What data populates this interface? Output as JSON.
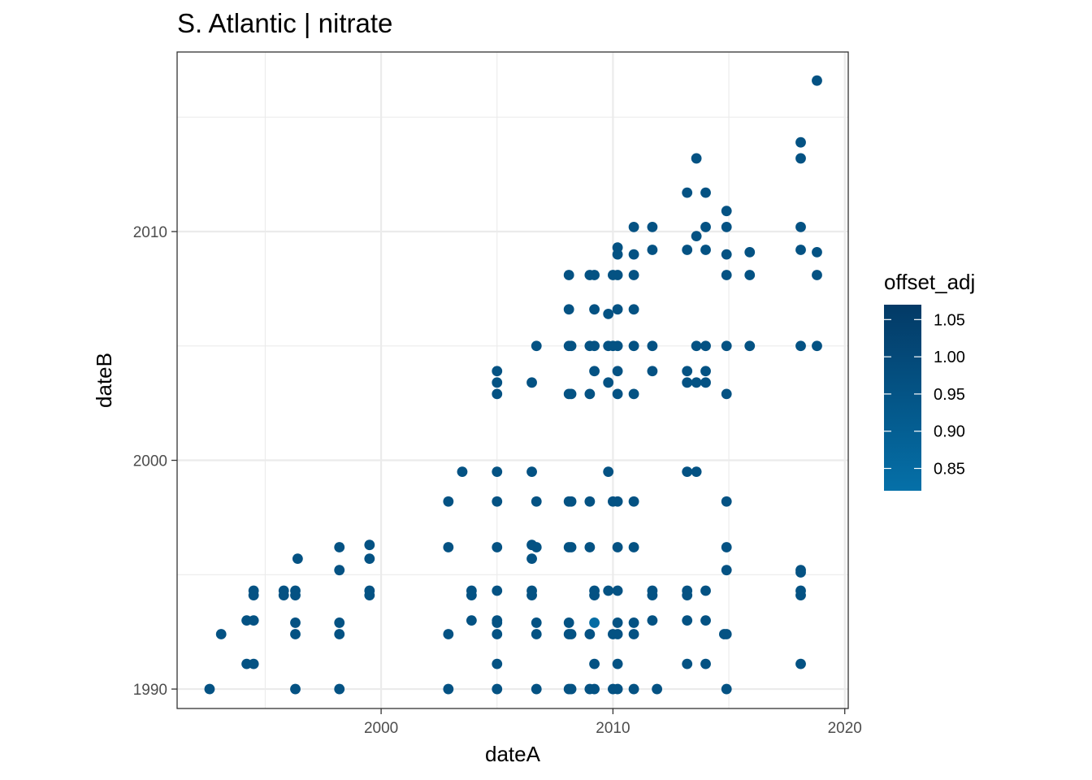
{
  "chart_data": {
    "type": "scatter",
    "title": "S. Atlantic | nitrate",
    "xlabel": "dateA",
    "ylabel": "dateB",
    "xlim": [
      1991.2,
      2020.15
    ],
    "ylim": [
      1989.15,
      2017.85
    ],
    "x_ticks": [
      2000,
      2010,
      2020
    ],
    "x_tick_labels": [
      "2000",
      "2010",
      "2020"
    ],
    "y_ticks": [
      1990,
      2000,
      2010
    ],
    "y_tick_labels": [
      "1990",
      "2000",
      "2010"
    ],
    "x_minor": [
      1995,
      2005,
      2015
    ],
    "y_minor": [
      1995,
      2005,
      2015
    ],
    "grid": true,
    "legend": {
      "title": "offset_adj",
      "placement": "right",
      "min": 0.82,
      "max": 1.07,
      "ticks": [
        1.05,
        1.0,
        0.95,
        0.9,
        0.85
      ],
      "tick_labels": [
        "1.05",
        "1.00",
        "0.95",
        "0.90",
        "0.85"
      ],
      "color_low": "#0570a8",
      "color_high": "#033a66"
    },
    "point_color_default": "#064a7d",
    "points": [
      {
        "x": 1992.6,
        "y": 1990.0,
        "v": 0.96
      },
      {
        "x": 1993.1,
        "y": 1992.4,
        "v": 0.96
      },
      {
        "x": 1994.2,
        "y": 1991.1,
        "v": 0.96
      },
      {
        "x": 1994.2,
        "y": 1993.0,
        "v": 0.96
      },
      {
        "x": 1994.5,
        "y": 1991.1,
        "v": 0.96
      },
      {
        "x": 1994.5,
        "y": 1993.0,
        "v": 0.96
      },
      {
        "x": 1994.5,
        "y": 1994.1,
        "v": 0.96
      },
      {
        "x": 1994.5,
        "y": 1994.3,
        "v": 0.96
      },
      {
        "x": 1995.8,
        "y": 1994.1,
        "v": 0.96
      },
      {
        "x": 1995.8,
        "y": 1994.3,
        "v": 0.96
      },
      {
        "x": 1996.3,
        "y": 1990.0,
        "v": 0.96
      },
      {
        "x": 1996.3,
        "y": 1992.4,
        "v": 0.96
      },
      {
        "x": 1996.3,
        "y": 1992.9,
        "v": 0.96
      },
      {
        "x": 1996.3,
        "y": 1994.1,
        "v": 0.96
      },
      {
        "x": 1996.3,
        "y": 1994.3,
        "v": 0.96
      },
      {
        "x": 1996.4,
        "y": 1995.7,
        "v": 0.96
      },
      {
        "x": 1998.2,
        "y": 1990.0,
        "v": 0.96
      },
      {
        "x": 1998.2,
        "y": 1992.4,
        "v": 0.96
      },
      {
        "x": 1998.2,
        "y": 1992.9,
        "v": 0.96
      },
      {
        "x": 1998.2,
        "y": 1995.2,
        "v": 0.96
      },
      {
        "x": 1998.2,
        "y": 1996.2,
        "v": 0.96
      },
      {
        "x": 1999.5,
        "y": 1994.1,
        "v": 0.96
      },
      {
        "x": 1999.5,
        "y": 1994.3,
        "v": 0.96
      },
      {
        "x": 1999.5,
        "y": 1995.7,
        "v": 0.96
      },
      {
        "x": 1999.5,
        "y": 1996.3,
        "v": 0.96
      },
      {
        "x": 2002.9,
        "y": 1990.0,
        "v": 0.96
      },
      {
        "x": 2002.9,
        "y": 1992.4,
        "v": 0.96
      },
      {
        "x": 2002.9,
        "y": 1996.2,
        "v": 0.96
      },
      {
        "x": 2002.9,
        "y": 1998.2,
        "v": 0.96
      },
      {
        "x": 2003.5,
        "y": 1999.5,
        "v": 0.96
      },
      {
        "x": 2003.9,
        "y": 1993.0,
        "v": 0.96
      },
      {
        "x": 2003.9,
        "y": 1994.1,
        "v": 0.96
      },
      {
        "x": 2003.9,
        "y": 1994.3,
        "v": 0.96
      },
      {
        "x": 2005.0,
        "y": 1990.0,
        "v": 0.96
      },
      {
        "x": 2005.0,
        "y": 1991.1,
        "v": 0.96
      },
      {
        "x": 2005.0,
        "y": 1992.4,
        "v": 0.96
      },
      {
        "x": 2005.0,
        "y": 1992.9,
        "v": 0.96
      },
      {
        "x": 2005.0,
        "y": 1993.0,
        "v": 0.96
      },
      {
        "x": 2005.0,
        "y": 1994.3,
        "v": 0.96
      },
      {
        "x": 2005.0,
        "y": 1996.2,
        "v": 0.96
      },
      {
        "x": 2005.0,
        "y": 1998.2,
        "v": 0.96
      },
      {
        "x": 2005.0,
        "y": 1999.5,
        "v": 0.96
      },
      {
        "x": 2005.0,
        "y": 2002.9,
        "v": 0.96
      },
      {
        "x": 2005.0,
        "y": 2003.4,
        "v": 0.96
      },
      {
        "x": 2005.0,
        "y": 2003.9,
        "v": 0.96
      },
      {
        "x": 2006.5,
        "y": 1994.1,
        "v": 0.96
      },
      {
        "x": 2006.5,
        "y": 1994.3,
        "v": 0.96
      },
      {
        "x": 2006.5,
        "y": 1995.7,
        "v": 0.96
      },
      {
        "x": 2006.5,
        "y": 1996.3,
        "v": 0.96
      },
      {
        "x": 2006.5,
        "y": 1999.5,
        "v": 0.96
      },
      {
        "x": 2006.5,
        "y": 2003.4,
        "v": 0.96
      },
      {
        "x": 2006.7,
        "y": 1990.0,
        "v": 0.96
      },
      {
        "x": 2006.7,
        "y": 1992.4,
        "v": 0.96
      },
      {
        "x": 2006.7,
        "y": 1992.9,
        "v": 0.96
      },
      {
        "x": 2006.7,
        "y": 1996.2,
        "v": 0.96
      },
      {
        "x": 2006.7,
        "y": 1998.2,
        "v": 0.96
      },
      {
        "x": 2006.7,
        "y": 2005.0,
        "v": 0.96
      },
      {
        "x": 2008.1,
        "y": 1990.0,
        "v": 0.96
      },
      {
        "x": 2008.1,
        "y": 1992.4,
        "v": 0.96
      },
      {
        "x": 2008.1,
        "y": 1992.9,
        "v": 0.96
      },
      {
        "x": 2008.1,
        "y": 1996.2,
        "v": 0.96
      },
      {
        "x": 2008.1,
        "y": 1998.2,
        "v": 0.96
      },
      {
        "x": 2008.1,
        "y": 2002.9,
        "v": 0.96
      },
      {
        "x": 2008.1,
        "y": 2005.0,
        "v": 0.96
      },
      {
        "x": 2008.1,
        "y": 2006.6,
        "v": 0.96
      },
      {
        "x": 2008.1,
        "y": 2008.1,
        "v": 0.96
      },
      {
        "x": 2008.2,
        "y": 1990.0,
        "v": 0.96
      },
      {
        "x": 2008.2,
        "y": 1992.4,
        "v": 0.96
      },
      {
        "x": 2008.2,
        "y": 1996.2,
        "v": 0.96
      },
      {
        "x": 2008.2,
        "y": 1998.2,
        "v": 0.96
      },
      {
        "x": 2008.2,
        "y": 2002.9,
        "v": 0.96
      },
      {
        "x": 2008.2,
        "y": 2005.0,
        "v": 0.96
      },
      {
        "x": 2009.0,
        "y": 1990.0,
        "v": 0.96
      },
      {
        "x": 2009.0,
        "y": 1992.4,
        "v": 0.96
      },
      {
        "x": 2009.0,
        "y": 1996.2,
        "v": 0.96
      },
      {
        "x": 2009.0,
        "y": 1998.2,
        "v": 0.96
      },
      {
        "x": 2009.0,
        "y": 2002.9,
        "v": 0.96
      },
      {
        "x": 2009.0,
        "y": 2005.0,
        "v": 0.96
      },
      {
        "x": 2009.0,
        "y": 2008.1,
        "v": 0.96
      },
      {
        "x": 2009.2,
        "y": 1990.0,
        "v": 0.96
      },
      {
        "x": 2009.2,
        "y": 1991.1,
        "v": 0.96
      },
      {
        "x": 2009.2,
        "y": 1992.9,
        "v": 0.84
      },
      {
        "x": 2009.2,
        "y": 1994.1,
        "v": 0.96
      },
      {
        "x": 2009.2,
        "y": 1994.3,
        "v": 0.96
      },
      {
        "x": 2009.2,
        "y": 2003.9,
        "v": 0.96
      },
      {
        "x": 2009.2,
        "y": 2005.0,
        "v": 0.96
      },
      {
        "x": 2009.2,
        "y": 2006.6,
        "v": 0.96
      },
      {
        "x": 2009.2,
        "y": 2008.1,
        "v": 0.96
      },
      {
        "x": 2009.8,
        "y": 1994.3,
        "v": 0.96
      },
      {
        "x": 2009.8,
        "y": 1999.5,
        "v": 0.96
      },
      {
        "x": 2009.8,
        "y": 2003.4,
        "v": 0.96
      },
      {
        "x": 2009.8,
        "y": 2005.0,
        "v": 0.96
      },
      {
        "x": 2009.8,
        "y": 2006.4,
        "v": 0.96
      },
      {
        "x": 2010.0,
        "y": 1990.0,
        "v": 0.96
      },
      {
        "x": 2010.0,
        "y": 1992.4,
        "v": 0.96
      },
      {
        "x": 2010.0,
        "y": 1998.2,
        "v": 0.96
      },
      {
        "x": 2010.0,
        "y": 2005.0,
        "v": 0.96
      },
      {
        "x": 2010.0,
        "y": 2008.1,
        "v": 0.96
      },
      {
        "x": 2010.2,
        "y": 1990.0,
        "v": 0.96
      },
      {
        "x": 2010.2,
        "y": 1991.1,
        "v": 0.96
      },
      {
        "x": 2010.2,
        "y": 1992.4,
        "v": 0.96
      },
      {
        "x": 2010.2,
        "y": 1992.9,
        "v": 0.96
      },
      {
        "x": 2010.2,
        "y": 1994.3,
        "v": 0.96
      },
      {
        "x": 2010.2,
        "y": 1996.2,
        "v": 0.96
      },
      {
        "x": 2010.2,
        "y": 1998.2,
        "v": 0.96
      },
      {
        "x": 2010.2,
        "y": 2002.9,
        "v": 0.96
      },
      {
        "x": 2010.2,
        "y": 2003.9,
        "v": 0.96
      },
      {
        "x": 2010.2,
        "y": 2005.0,
        "v": 0.96
      },
      {
        "x": 2010.2,
        "y": 2006.6,
        "v": 0.96
      },
      {
        "x": 2010.2,
        "y": 2008.1,
        "v": 0.96
      },
      {
        "x": 2010.2,
        "y": 2009.0,
        "v": 0.96
      },
      {
        "x": 2010.2,
        "y": 2009.3,
        "v": 0.96
      },
      {
        "x": 2010.9,
        "y": 1990.0,
        "v": 0.96
      },
      {
        "x": 2010.9,
        "y": 1992.4,
        "v": 0.96
      },
      {
        "x": 2010.9,
        "y": 1992.9,
        "v": 0.96
      },
      {
        "x": 2010.9,
        "y": 1996.2,
        "v": 0.96
      },
      {
        "x": 2010.9,
        "y": 1998.2,
        "v": 0.96
      },
      {
        "x": 2010.9,
        "y": 2002.9,
        "v": 0.96
      },
      {
        "x": 2010.9,
        "y": 2005.0,
        "v": 0.96
      },
      {
        "x": 2010.9,
        "y": 2006.6,
        "v": 0.96
      },
      {
        "x": 2010.9,
        "y": 2008.1,
        "v": 0.96
      },
      {
        "x": 2010.9,
        "y": 2009.0,
        "v": 0.96
      },
      {
        "x": 2010.9,
        "y": 2010.2,
        "v": 0.96
      },
      {
        "x": 2011.9,
        "y": 1990.0,
        "v": 0.96
      },
      {
        "x": 2011.7,
        "y": 1993.0,
        "v": 0.96
      },
      {
        "x": 2011.7,
        "y": 1994.1,
        "v": 0.96
      },
      {
        "x": 2011.7,
        "y": 1994.3,
        "v": 0.96
      },
      {
        "x": 2011.7,
        "y": 2003.9,
        "v": 0.96
      },
      {
        "x": 2011.7,
        "y": 2005.0,
        "v": 0.96
      },
      {
        "x": 2011.7,
        "y": 2009.2,
        "v": 0.96
      },
      {
        "x": 2011.7,
        "y": 2010.2,
        "v": 0.96
      },
      {
        "x": 2013.2,
        "y": 1991.1,
        "v": 0.96
      },
      {
        "x": 2013.2,
        "y": 1993.0,
        "v": 0.96
      },
      {
        "x": 2013.2,
        "y": 1994.1,
        "v": 0.96
      },
      {
        "x": 2013.2,
        "y": 1994.3,
        "v": 0.96
      },
      {
        "x": 2013.2,
        "y": 1999.5,
        "v": 0.96
      },
      {
        "x": 2013.2,
        "y": 2003.4,
        "v": 0.96
      },
      {
        "x": 2013.2,
        "y": 2003.9,
        "v": 0.96
      },
      {
        "x": 2013.2,
        "y": 2009.2,
        "v": 0.96
      },
      {
        "x": 2013.2,
        "y": 2011.7,
        "v": 0.96
      },
      {
        "x": 2013.6,
        "y": 1999.5,
        "v": 0.96
      },
      {
        "x": 2013.6,
        "y": 2003.4,
        "v": 0.96
      },
      {
        "x": 2013.6,
        "y": 2005.0,
        "v": 0.96
      },
      {
        "x": 2013.6,
        "y": 2009.8,
        "v": 0.96
      },
      {
        "x": 2013.6,
        "y": 2013.2,
        "v": 0.96
      },
      {
        "x": 2014.0,
        "y": 1991.1,
        "v": 0.96
      },
      {
        "x": 2014.0,
        "y": 1993.0,
        "v": 0.96
      },
      {
        "x": 2014.0,
        "y": 1994.3,
        "v": 0.96
      },
      {
        "x": 2014.0,
        "y": 2003.4,
        "v": 0.96
      },
      {
        "x": 2014.0,
        "y": 2003.9,
        "v": 0.96
      },
      {
        "x": 2014.0,
        "y": 2005.0,
        "v": 0.96
      },
      {
        "x": 2014.0,
        "y": 2009.2,
        "v": 0.96
      },
      {
        "x": 2014.0,
        "y": 2010.2,
        "v": 0.96
      },
      {
        "x": 2014.0,
        "y": 2011.7,
        "v": 0.96
      },
      {
        "x": 2014.8,
        "y": 1992.4,
        "v": 0.96
      },
      {
        "x": 2014.9,
        "y": 1990.0,
        "v": 0.96
      },
      {
        "x": 2014.9,
        "y": 1992.4,
        "v": 0.96
      },
      {
        "x": 2014.9,
        "y": 1995.2,
        "v": 0.96
      },
      {
        "x": 2014.9,
        "y": 1996.2,
        "v": 0.96
      },
      {
        "x": 2014.9,
        "y": 1998.2,
        "v": 0.96
      },
      {
        "x": 2014.9,
        "y": 2002.9,
        "v": 0.96
      },
      {
        "x": 2014.9,
        "y": 2005.0,
        "v": 0.96
      },
      {
        "x": 2014.9,
        "y": 2008.1,
        "v": 0.96
      },
      {
        "x": 2014.9,
        "y": 2009.0,
        "v": 0.96
      },
      {
        "x": 2014.9,
        "y": 2010.2,
        "v": 0.96
      },
      {
        "x": 2014.9,
        "y": 2010.9,
        "v": 0.96
      },
      {
        "x": 2015.9,
        "y": 2005.0,
        "v": 0.96
      },
      {
        "x": 2015.9,
        "y": 2008.1,
        "v": 0.96
      },
      {
        "x": 2015.9,
        "y": 2009.1,
        "v": 0.96
      },
      {
        "x": 2018.1,
        "y": 1991.1,
        "v": 0.96
      },
      {
        "x": 2018.1,
        "y": 1994.1,
        "v": 0.96
      },
      {
        "x": 2018.1,
        "y": 1994.3,
        "v": 0.96
      },
      {
        "x": 2018.1,
        "y": 1995.1,
        "v": 0.96
      },
      {
        "x": 2018.1,
        "y": 1995.2,
        "v": 0.96
      },
      {
        "x": 2018.1,
        "y": 2005.0,
        "v": 0.96
      },
      {
        "x": 2018.1,
        "y": 2009.2,
        "v": 0.96
      },
      {
        "x": 2018.1,
        "y": 2010.2,
        "v": 0.96
      },
      {
        "x": 2018.1,
        "y": 2013.2,
        "v": 0.96
      },
      {
        "x": 2018.1,
        "y": 2013.9,
        "v": 0.96
      },
      {
        "x": 2018.8,
        "y": 2005.0,
        "v": 0.96
      },
      {
        "x": 2018.8,
        "y": 2008.1,
        "v": 0.96
      },
      {
        "x": 2018.8,
        "y": 2009.1,
        "v": 0.96
      },
      {
        "x": 2018.8,
        "y": 2016.6,
        "v": 0.96
      }
    ]
  }
}
